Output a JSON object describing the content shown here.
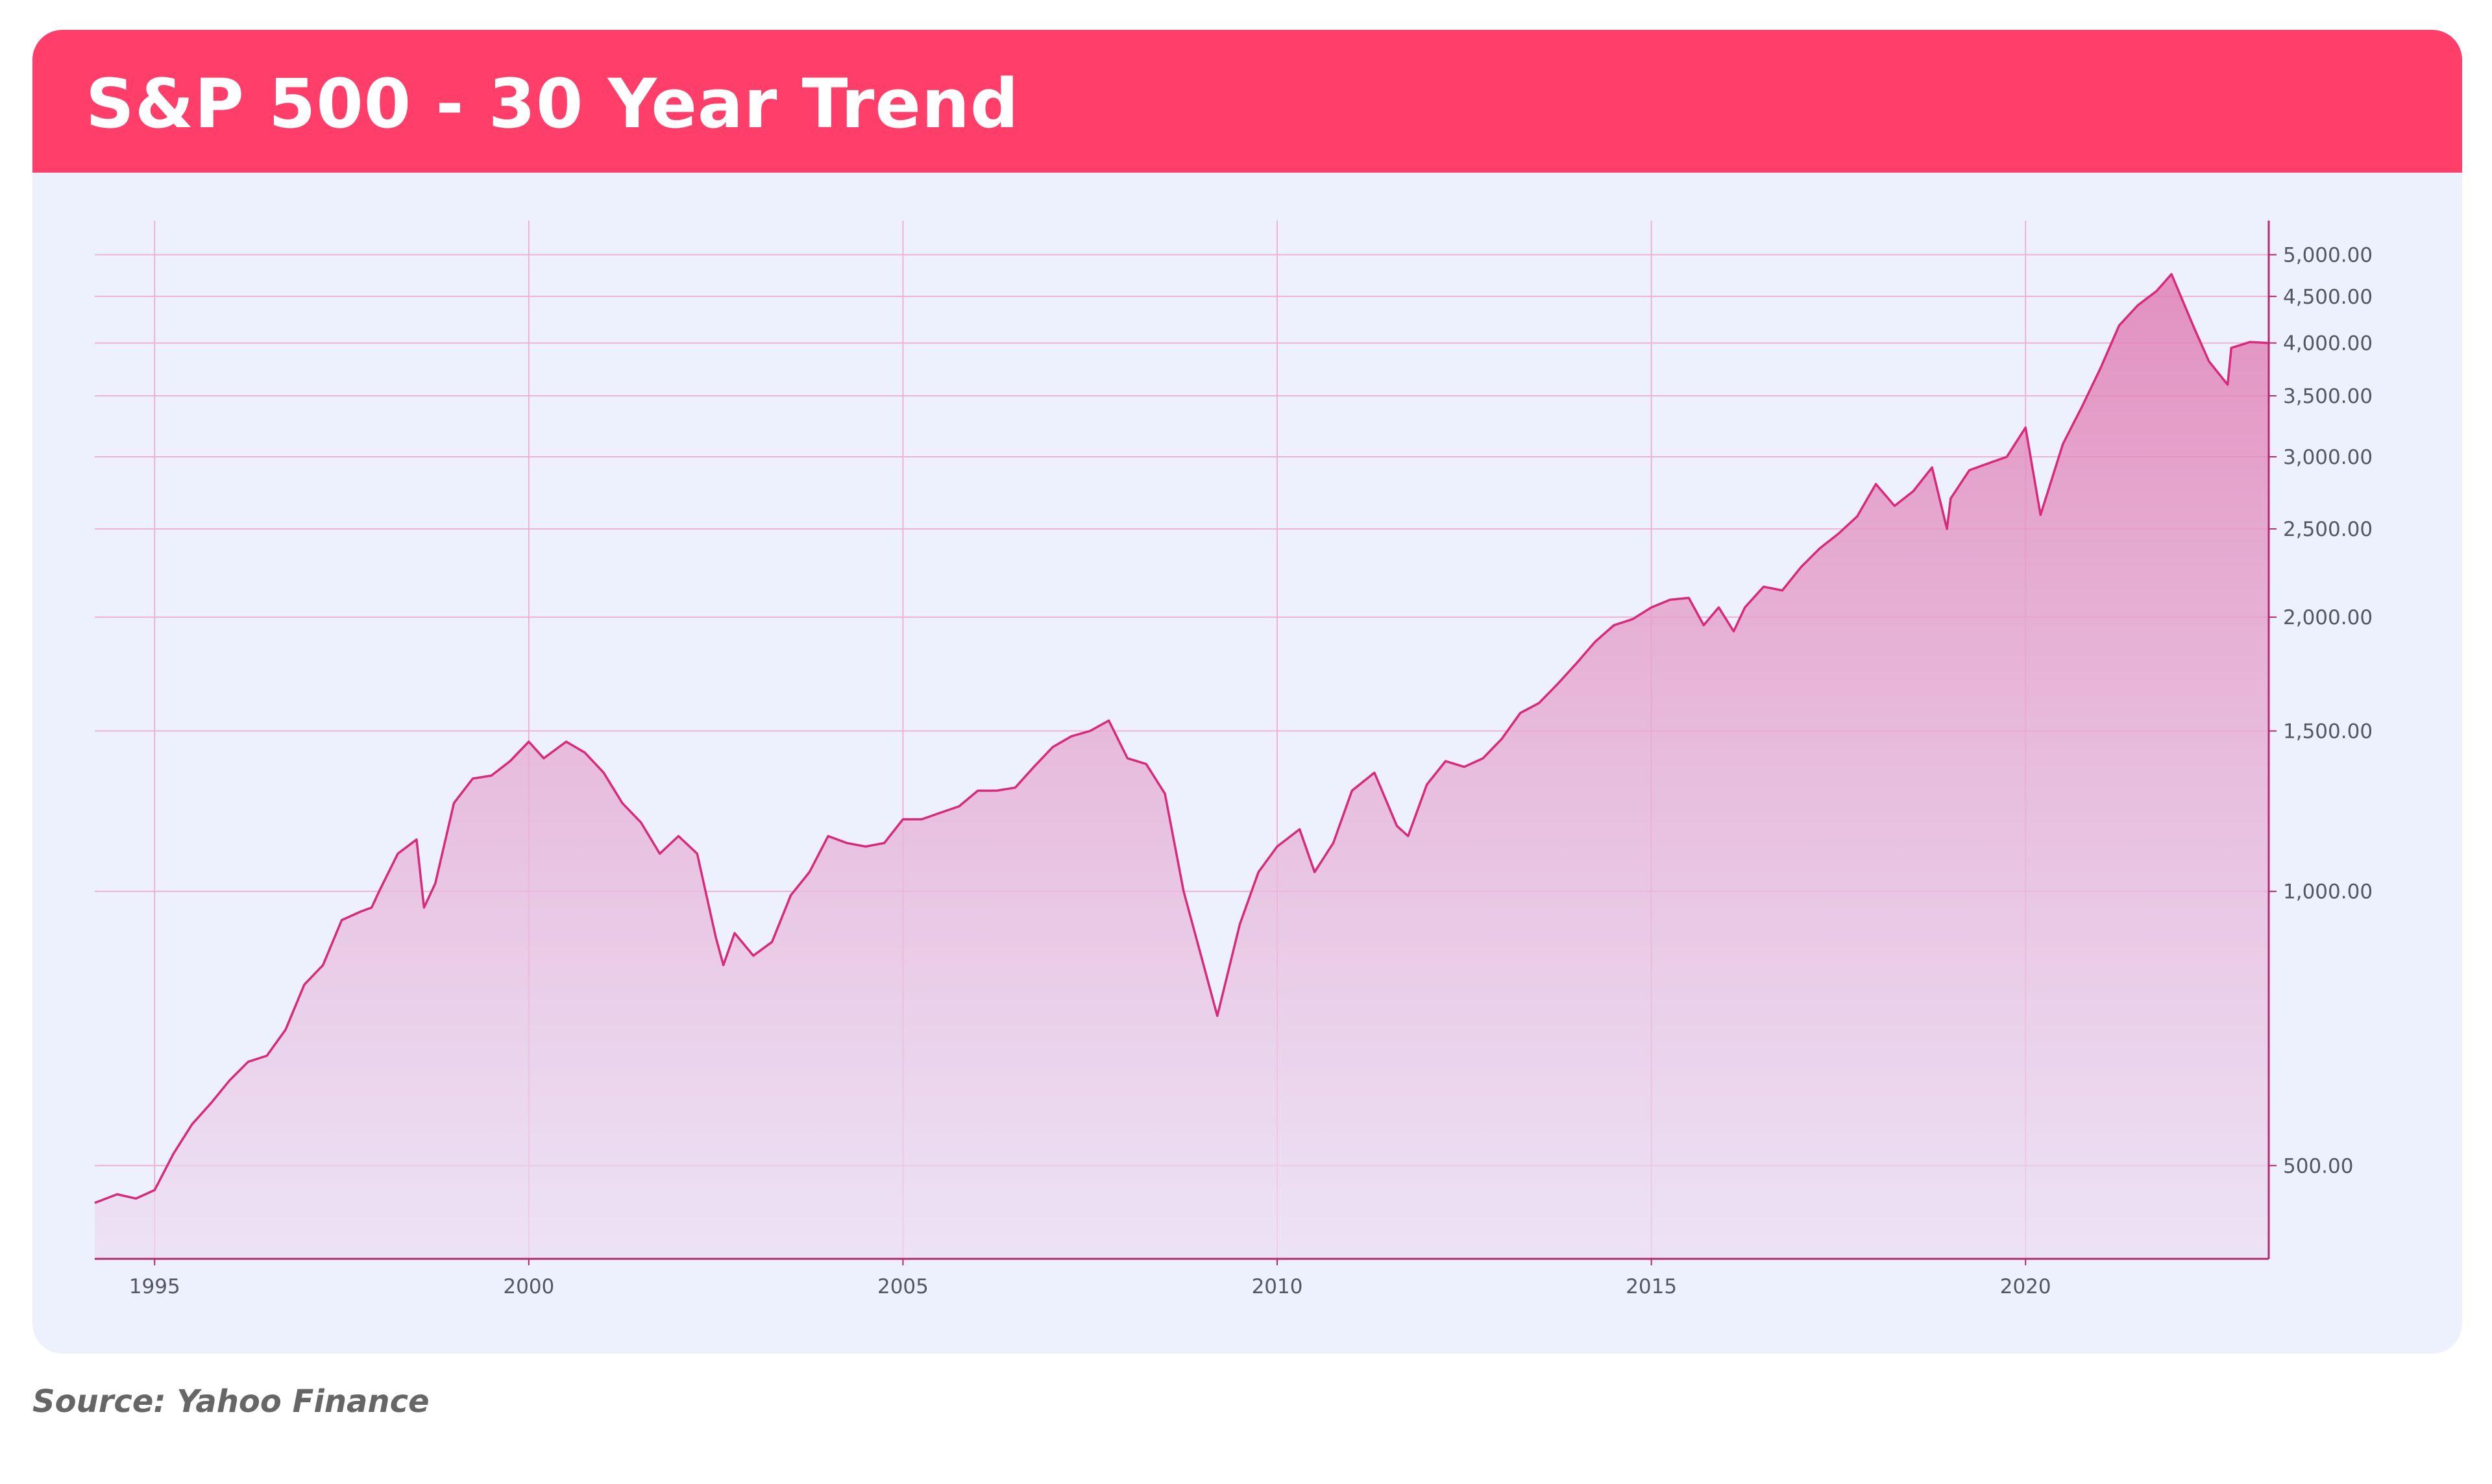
{
  "header": {
    "title": "S&P 500 - 30 Year Trend"
  },
  "footer": {
    "source": "Source: Yahoo Finance"
  },
  "colors": {
    "header_bg": "#ff3e6a",
    "card_bg": "#edf1fd",
    "line": "#d9297a",
    "grid": "#efb3d2",
    "axis": "#b12a6e",
    "tick_text": "#555566"
  },
  "chart_data": {
    "type": "area",
    "title": "S&P 500 - 30 Year Trend",
    "xlabel": "",
    "ylabel": "",
    "y_scale": "log",
    "xlim": [
      1994.2,
      2023.25
    ],
    "ylim": [
      395,
      5450
    ],
    "grid": true,
    "y_axis_side": "right",
    "x_ticks": [
      1995,
      2000,
      2005,
      2010,
      2015,
      2020
    ],
    "x_tick_labels": [
      "1995",
      "2000",
      "2005",
      "2010",
      "2015",
      "2020"
    ],
    "y_ticks": [
      500,
      1000,
      1500,
      2000,
      2500,
      3000,
      3500,
      4000,
      4500,
      5000
    ],
    "y_tick_labels": [
      "500.00",
      "1,000.00",
      "1,500.00",
      "2,000.00",
      "2,500.00",
      "3,000.00",
      "3,500.00",
      "4,000.00",
      "4,500.00",
      "5,000.00"
    ],
    "series": [
      {
        "x": [
          1994.2,
          1994.5,
          1994.75,
          1995.0,
          1995.25,
          1995.5,
          1995.75,
          1996.0,
          1996.25,
          1996.5,
          1996.75,
          1997.0,
          1997.25,
          1997.5,
          1997.75,
          1997.9,
          1998.0,
          1998.25,
          1998.5,
          1998.6,
          1998.75,
          1999.0,
          1999.25,
          1999.5,
          1999.75,
          2000.0,
          2000.2,
          2000.5,
          2000.75,
          2001.0,
          2001.25,
          2001.5,
          2001.75,
          2002.0,
          2002.25,
          2002.5,
          2002.6,
          2002.75,
          2003.0,
          2003.25,
          2003.5,
          2003.75,
          2004.0,
          2004.25,
          2004.5,
          2004.75,
          2005.0,
          2005.25,
          2005.5,
          2005.75,
          2006.0,
          2006.25,
          2006.5,
          2006.75,
          2007.0,
          2007.25,
          2007.5,
          2007.75,
          2008.0,
          2008.25,
          2008.5,
          2008.75,
          2009.0,
          2009.2,
          2009.5,
          2009.75,
          2010.0,
          2010.3,
          2010.5,
          2010.75,
          2011.0,
          2011.3,
          2011.6,
          2011.75,
          2012.0,
          2012.25,
          2012.5,
          2012.75,
          2013.0,
          2013.25,
          2013.5,
          2013.75,
          2014.0,
          2014.25,
          2014.5,
          2014.75,
          2015.0,
          2015.25,
          2015.5,
          2015.7,
          2015.9,
          2016.1,
          2016.25,
          2016.5,
          2016.75,
          2017.0,
          2017.25,
          2017.5,
          2017.75,
          2018.0,
          2018.25,
          2018.5,
          2018.75,
          2018.95,
          2019.0,
          2019.25,
          2019.5,
          2019.75,
          2020.0,
          2020.2,
          2020.5,
          2020.75,
          2021.0,
          2021.25,
          2021.5,
          2021.75,
          2021.95,
          2022.25,
          2022.45,
          2022.7,
          2022.75,
          2023.0,
          2023.25
        ],
        "values": [
          455,
          465,
          460,
          470,
          515,
          555,
          585,
          620,
          650,
          660,
          705,
          790,
          830,
          930,
          950,
          960,
          1000,
          1100,
          1140,
          960,
          1020,
          1250,
          1330,
          1340,
          1390,
          1460,
          1400,
          1460,
          1420,
          1350,
          1250,
          1190,
          1100,
          1150,
          1100,
          890,
          830,
          900,
          850,
          880,
          990,
          1050,
          1150,
          1130,
          1120,
          1130,
          1200,
          1200,
          1220,
          1240,
          1290,
          1290,
          1300,
          1370,
          1440,
          1480,
          1500,
          1540,
          1400,
          1380,
          1280,
          1000,
          840,
          730,
          920,
          1050,
          1120,
          1170,
          1050,
          1130,
          1290,
          1350,
          1180,
          1150,
          1310,
          1390,
          1370,
          1400,
          1470,
          1570,
          1610,
          1690,
          1780,
          1880,
          1960,
          1990,
          2050,
          2090,
          2100,
          1960,
          2050,
          1930,
          2050,
          2160,
          2140,
          2270,
          2380,
          2470,
          2580,
          2800,
          2650,
          2750,
          2920,
          2500,
          2700,
          2900,
          2950,
          3000,
          3230,
          2590,
          3100,
          3400,
          3750,
          4180,
          4400,
          4560,
          4760,
          4160,
          3820,
          3600,
          3950,
          4010,
          4000
        ]
      }
    ]
  }
}
